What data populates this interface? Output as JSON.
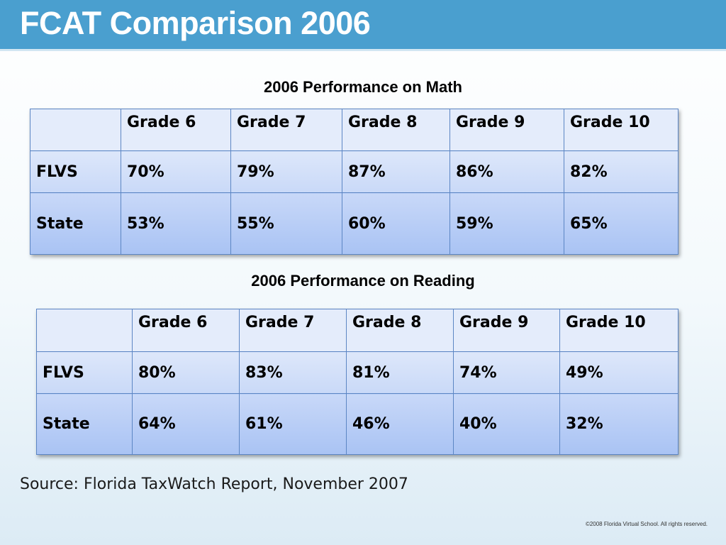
{
  "title": "FCAT Comparison 2006",
  "math": {
    "caption": "2006 Performance on Math",
    "header": [
      "",
      "Grade 6",
      "Grade 7",
      "Grade 8",
      "Grade 9",
      "Grade 10"
    ],
    "rows": [
      [
        "FLVS",
        "70%",
        "79%",
        "87%",
        "86%",
        "82%"
      ],
      [
        "State",
        "53%",
        "55%",
        "60%",
        "59%",
        "65%"
      ]
    ]
  },
  "reading": {
    "caption": "2006 Performance on Reading",
    "header": [
      "",
      "Grade 6",
      "Grade 7",
      "Grade 8",
      "Grade 9",
      "Grade 10"
    ],
    "rows": [
      [
        "FLVS",
        "80%",
        "83%",
        "81%",
        "74%",
        "49%"
      ],
      [
        "State",
        "64%",
        "61%",
        "46%",
        "40%",
        "32%"
      ]
    ]
  },
  "source": "Source: Florida TaxWatch Report, November 2007",
  "copyright": "©2008 Florida Virtual School. All rights reserved.",
  "colors": {
    "title_bar": "#4a9fcf",
    "cell_border": "#5c86c4",
    "header_row": "#e4ecfb",
    "state_row": "#a9c3f4"
  }
}
